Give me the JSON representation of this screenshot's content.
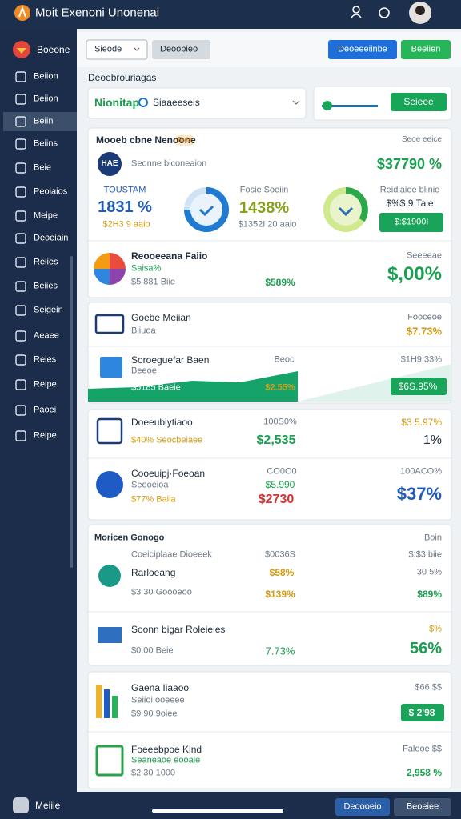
{
  "header": {
    "title": "Moit Exenoni Unonenai"
  },
  "sidebar": {
    "brand": "Boeone",
    "items": [
      "Beiion",
      "Beiion",
      "Beiin",
      "Beiins",
      "Beie",
      "Peoiaios",
      "Meipe",
      "Deoeiain",
      "Reiies",
      "Beiies",
      "Seigein",
      "Aeaee",
      "Reies",
      "Reipe",
      "Paoei",
      "Reipe"
    ],
    "footer": "Meiiie"
  },
  "toolbar": {
    "select": "Sieode",
    "filter": "Deoobieo",
    "primary": "Deoeeeiinbe",
    "secondary": "Beeiien"
  },
  "section": "Deoebrouriagas",
  "search": {
    "label": "Nionitap",
    "query": "Siaaeeseis"
  },
  "slider": {
    "button": "Seieee"
  },
  "cards": [
    {
      "title": "Mooeb cbne Nenoone",
      "tag": "Beie",
      "meta": "Seoe eeice",
      "brand": "HAE",
      "brand_text": "Seonne biconeaion",
      "total": "$37790 %",
      "stats": [
        {
          "label": "TOUSTAM",
          "value": "1831 %",
          "sub": "$2H3 9 aaio"
        },
        {
          "label": "Fosie Soeiin",
          "value": "1438%",
          "sub": "$1352I 20 aaio"
        },
        {
          "label": "Reidiaiee blinie",
          "value": "$%$ 9 Taie",
          "sub": "$:$1900I"
        }
      ],
      "rows": [
        {
          "title": "Reooeeana Faiio",
          "sub": "Saisa%",
          "note": "$5 881 Biie",
          "change": "$589%",
          "meta": "Seeeeae",
          "value": "$,00%"
        }
      ]
    },
    {
      "rows": [
        {
          "title": "Goebe Meiian",
          "sub": "Biiuoa",
          "meta": "Fooceoe",
          "value": "$7.73%"
        },
        {
          "title": "Soroeguefar Baen",
          "sub": "Beeoe",
          "mid_top": "Beoc",
          "meta": "$1H9.33%",
          "note": "$5185 Baeie",
          "change": "$2.55%",
          "value": "$6S.95%"
        }
      ]
    },
    {
      "rows": [
        {
          "title": "Doeeubiytiaoo",
          "note": "$40% Seocbeiaee",
          "mid_top": "100S0%",
          "change": "$2,535",
          "meta": "$3 5.97%",
          "value": "1%"
        },
        {
          "title": "Cooeuipj·Foeoan",
          "sub": "Seooeioa",
          "note": "$77% Baiia",
          "mid_top": "CO0O0",
          "mid": "$5.990",
          "change": "$2730",
          "meta": "100ACO%",
          "value": "$37%"
        }
      ]
    },
    {
      "title": "Moricen Gonogo",
      "meta": "Boin",
      "rows": [
        {
          "title": "Coeiciplaae Dioeeek",
          "mid_top": "$0036S",
          "meta": "$:$3 biie",
          "sub": "Rarloeang",
          "mid": "$58%",
          "value": "30 5%",
          "note": "$3 30 Goooeoo",
          "change": "$139%",
          "value2": "$89%"
        },
        {
          "title": "Soonn bigar Roleieies",
          "meta": "$%",
          "note": "$0.00 Beie",
          "change": "7.73%",
          "value": "56%"
        }
      ]
    },
    {
      "rows": [
        {
          "title": "Gaena Iiaaoo",
          "sub": "Seiioi ooeeee",
          "note": "$9 90 9oiee",
          "meta": "$66 $$",
          "value": "$ 2'98"
        },
        {
          "title": "Foeeebpoe Kind",
          "sub": "Seaneaoe eooaie",
          "note": "$2 30 1000",
          "meta": "Faleoe $$",
          "value": "2,958 %"
        }
      ]
    }
  ],
  "footer": {
    "left": "Deoooeio",
    "right": "Beoeiee"
  }
}
